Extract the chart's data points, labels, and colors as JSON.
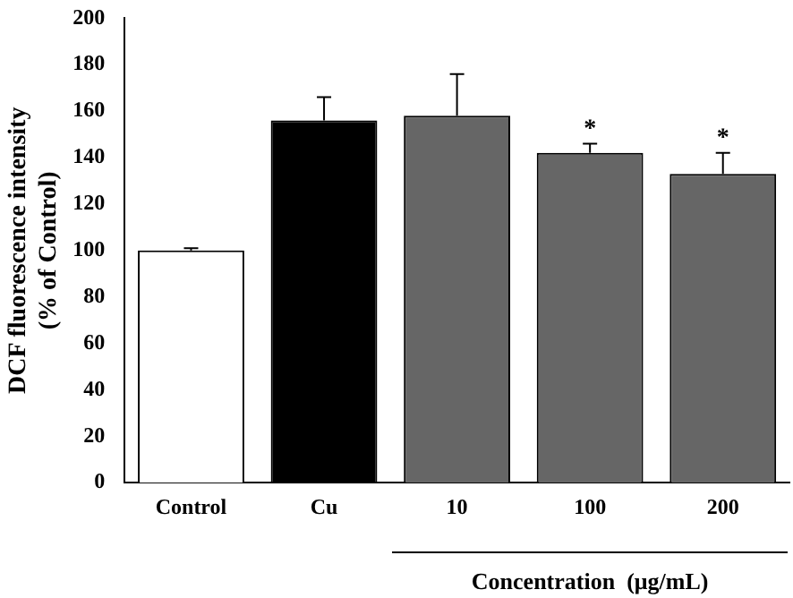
{
  "chart_data": {
    "type": "bar",
    "categories": [
      "Control",
      "Cu",
      "10",
      "100",
      "200"
    ],
    "values": [
      100,
      156,
      158,
      142,
      133
    ],
    "colors": [
      "#ffffff",
      "#000000",
      "#666666",
      "#666666",
      "#666666"
    ],
    "errors": [
      [
        100,
        101
      ],
      [
        156,
        166
      ],
      [
        158,
        176
      ],
      [
        142,
        146
      ],
      [
        133,
        142
      ]
    ],
    "ylabel": "DCF fluorescence intensity\n(% of Control)",
    "xlabel": "Concentration  (μg/mL)",
    "ylim": [
      0,
      200
    ],
    "yticks": [
      0,
      20,
      40,
      60,
      80,
      100,
      120,
      140,
      160,
      180,
      200
    ],
    "annotations": [
      {
        "text": "*",
        "x": "100",
        "y": 146
      },
      {
        "text": "*",
        "x": "200",
        "y": 142
      }
    ],
    "grid": false,
    "legend": false
  }
}
